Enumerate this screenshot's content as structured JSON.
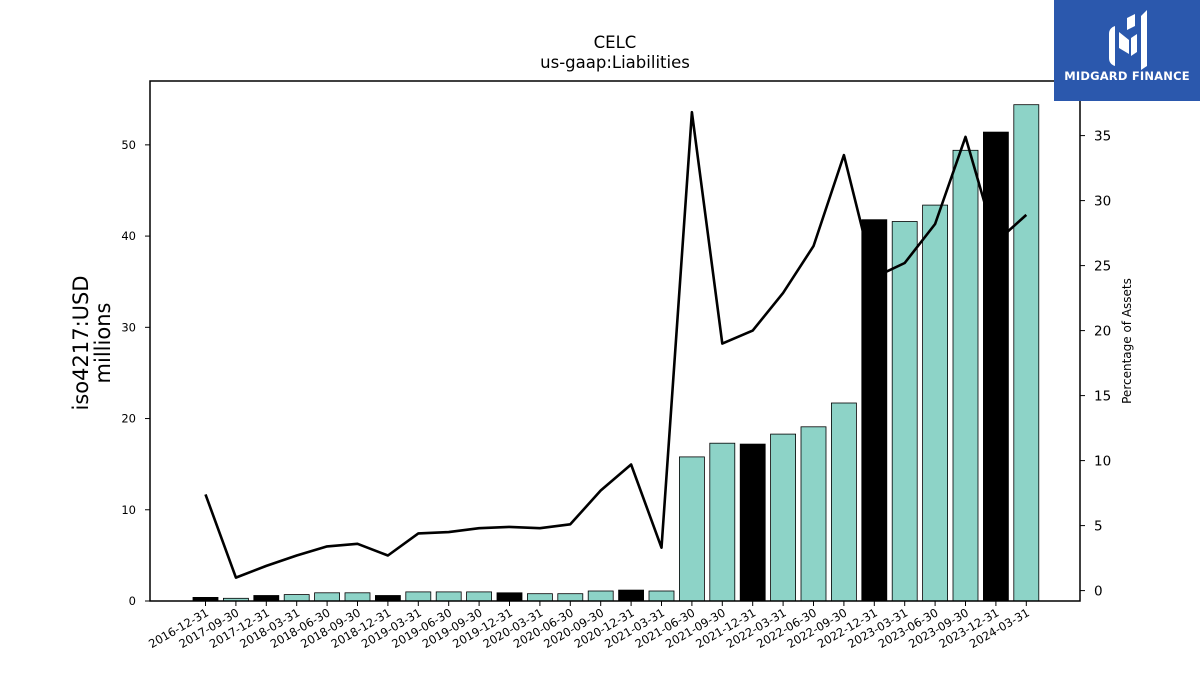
{
  "brand": {
    "name": "MIDGARD FINANCE",
    "mark_icon": "midgard-logo-icon",
    "bg_color": "#2b58ad"
  },
  "chart_data": {
    "type": "bar",
    "title": "CELC",
    "subtitle": "us-gaap:Liabilities",
    "ylabel": "iso4217:USD\nmillions",
    "y2label": "Percentage of Assets",
    "categories": [
      "2016-12-31",
      "2017-09-30",
      "2017-12-31",
      "2018-03-31",
      "2018-06-30",
      "2018-09-30",
      "2018-12-31",
      "2019-03-31",
      "2019-06-30",
      "2019-09-30",
      "2019-12-31",
      "2020-03-31",
      "2020-06-30",
      "2020-09-30",
      "2020-12-31",
      "2021-03-31",
      "2021-06-30",
      "2021-09-30",
      "2021-12-31",
      "2022-03-31",
      "2022-06-30",
      "2022-09-30",
      "2022-12-31",
      "2023-03-31",
      "2023-06-30",
      "2023-09-30",
      "2023-12-31",
      "2024-03-31"
    ],
    "series": [
      {
        "type": "bar",
        "axis": "left",
        "values": [
          0.4,
          0.3,
          0.6,
          0.7,
          0.9,
          0.9,
          0.6,
          1.0,
          1.0,
          1.0,
          0.9,
          0.8,
          0.8,
          1.1,
          1.2,
          1.1,
          15.8,
          17.3,
          17.2,
          18.3,
          19.1,
          21.7,
          41.8,
          41.6,
          43.4,
          49.4,
          51.4,
          54.4
        ],
        "annual_flags": [
          true,
          false,
          true,
          false,
          false,
          false,
          true,
          false,
          false,
          false,
          true,
          false,
          false,
          false,
          true,
          false,
          false,
          false,
          true,
          false,
          false,
          false,
          true,
          false,
          false,
          false,
          true,
          false
        ]
      },
      {
        "type": "line",
        "axis": "right",
        "values": [
          7.4,
          1.0,
          1.9,
          2.7,
          3.4,
          3.6,
          2.7,
          4.4,
          4.5,
          4.8,
          4.9,
          4.8,
          5.1,
          7.7,
          9.7,
          3.3,
          36.8,
          19.0,
          20.0,
          22.9,
          26.5,
          33.5,
          24.1,
          25.2,
          28.2,
          34.9,
          26.8,
          28.9
        ]
      }
    ],
    "ylim": [
      0,
      57
    ],
    "yticks": [
      0,
      10,
      20,
      30,
      40,
      50
    ],
    "y2lim": [
      -0.8,
      39.2
    ],
    "y2ticks": [
      0,
      5,
      10,
      15,
      20,
      25,
      30,
      35
    ],
    "colors": {
      "annual_bar": "#000000",
      "quarter_bar": "#8dd3c7",
      "line": "#000000"
    },
    "grid": false,
    "legend": "none"
  }
}
